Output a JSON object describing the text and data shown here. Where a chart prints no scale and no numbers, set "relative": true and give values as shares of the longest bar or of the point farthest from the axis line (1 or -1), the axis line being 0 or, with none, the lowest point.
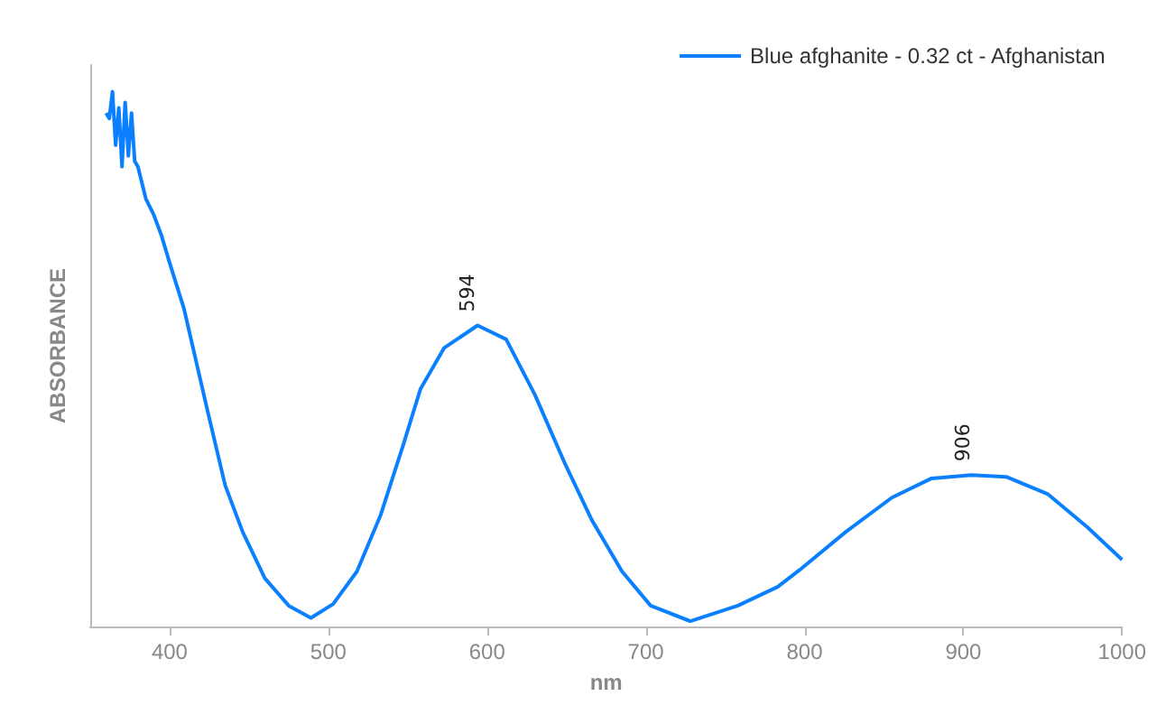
{
  "chart_data": {
    "type": "line",
    "relative": true,
    "xlabel": "nm",
    "ylabel": "ABSORBANCE",
    "legend": "top right",
    "grid": false,
    "marker": "none",
    "line_style": "solid",
    "xlim": [
      350,
      1000
    ],
    "xticks": [
      400,
      500,
      600,
      700,
      800,
      900,
      1000
    ],
    "x": [
      360,
      362,
      364,
      366,
      368,
      370,
      372,
      374,
      376,
      378,
      380,
      385,
      390,
      395,
      400,
      409,
      424,
      435,
      446,
      460,
      475,
      489,
      503,
      518,
      533,
      547,
      558,
      573,
      594,
      612,
      630,
      649,
      666,
      685,
      703,
      728,
      758,
      783,
      797,
      826,
      855,
      880,
      905,
      927,
      953,
      978,
      1000
    ],
    "series": [
      {
        "name": "Blue afghanite - 0.32 ct - Afghanistan",
        "color": "#0a80ff",
        "values": [
          0.96,
          0.95,
          1.0,
          0.9,
          0.97,
          0.86,
          0.98,
          0.88,
          0.96,
          0.87,
          0.86,
          0.8,
          0.77,
          0.73,
          0.68,
          0.595,
          0.402,
          0.264,
          0.177,
          0.09,
          0.039,
          0.016,
          0.042,
          0.103,
          0.209,
          0.338,
          0.444,
          0.521,
          0.563,
          0.537,
          0.434,
          0.305,
          0.199,
          0.103,
          0.039,
          0.01,
          0.039,
          0.074,
          0.106,
          0.177,
          0.241,
          0.277,
          0.283,
          0.28,
          0.248,
          0.186,
          0.125
        ]
      }
    ],
    "annotations": [
      {
        "text": "594",
        "x": 594,
        "y": 0.563
      },
      {
        "text": "906",
        "x": 906,
        "y": 0.283
      }
    ]
  }
}
